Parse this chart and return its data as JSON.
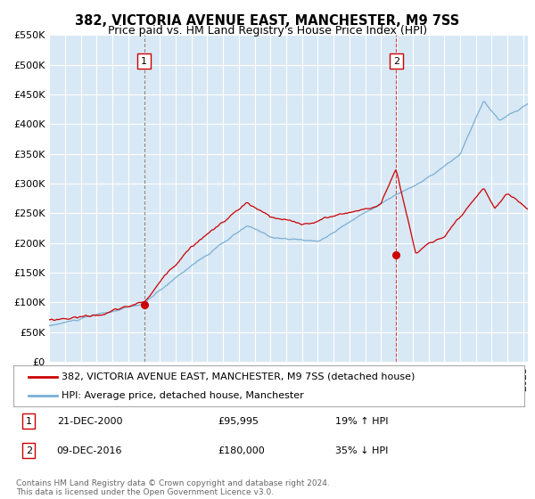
{
  "title": "382, VICTORIA AVENUE EAST, MANCHESTER, M9 7SS",
  "subtitle": "Price paid vs. HM Land Registry's House Price Index (HPI)",
  "ylim": [
    0,
    550000
  ],
  "yticks": [
    0,
    50000,
    100000,
    150000,
    200000,
    250000,
    300000,
    350000,
    400000,
    450000,
    500000,
    550000
  ],
  "ytick_labels": [
    "£0",
    "£50K",
    "£100K",
    "£150K",
    "£200K",
    "£250K",
    "£300K",
    "£350K",
    "£400K",
    "£450K",
    "£500K",
    "£550K"
  ],
  "xlim_start": 1995.0,
  "xlim_end": 2025.3,
  "plot_bg_color": "#d8e8f5",
  "grid_color": "#ffffff",
  "red_color": "#cc0000",
  "blue_color": "#7aafd4",
  "marker1_year": 2001.0,
  "marker1_value": 95995,
  "marker2_year": 2016.95,
  "marker2_value": 180000,
  "vline1_year": 2001.0,
  "vline2_year": 2016.95,
  "legend_line1": "382, VICTORIA AVENUE EAST, MANCHESTER, M9 7SS (detached house)",
  "legend_line2": "HPI: Average price, detached house, Manchester",
  "ann1_date": "21-DEC-2000",
  "ann1_price": "£95,995",
  "ann1_hpi": "19% ↑ HPI",
  "ann2_date": "09-DEC-2016",
  "ann2_price": "£180,000",
  "ann2_hpi": "35% ↓ HPI",
  "footer": "Contains HM Land Registry data © Crown copyright and database right 2024.\nThis data is licensed under the Open Government Licence v3.0.",
  "title_fontsize": 10.5,
  "subtitle_fontsize": 9,
  "tick_fontsize": 8,
  "legend_fontsize": 8,
  "ann_fontsize": 8,
  "footer_fontsize": 6.5
}
